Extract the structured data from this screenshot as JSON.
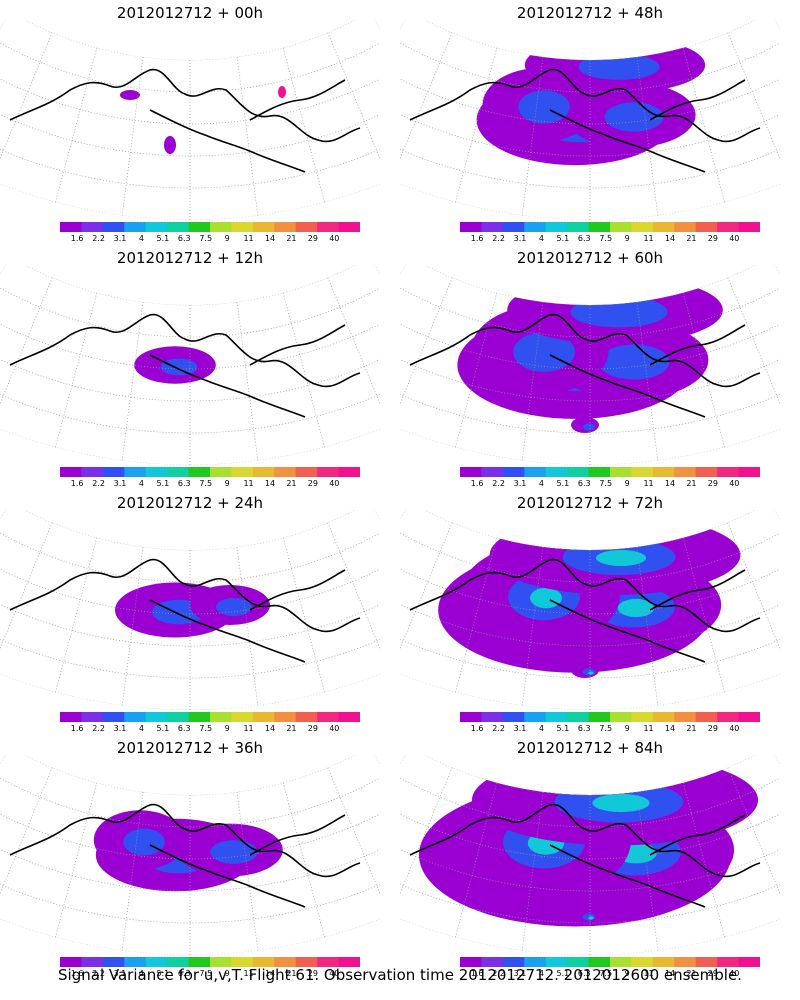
{
  "panels": [
    {
      "title": "2012012712 + 00h",
      "level": 0
    },
    {
      "title": "2012012712 + 48h",
      "level": 4
    },
    {
      "title": "2012012712 + 12h",
      "level": 1
    },
    {
      "title": "2012012712 + 60h",
      "level": 5
    },
    {
      "title": "2012012712 + 24h",
      "level": 2
    },
    {
      "title": "2012012712 + 72h",
      "level": 6
    },
    {
      "title": "2012012712 + 36h",
      "level": 3
    },
    {
      "title": "2012012712 + 84h",
      "level": 7
    }
  ],
  "colorbar": {
    "labels": [
      "1.6",
      "2.2",
      "3.1",
      "4",
      "5.1",
      "6.3",
      "7.5",
      "9",
      "11",
      "14",
      "21",
      "29",
      "40"
    ],
    "colors": [
      "#9a00d2",
      "#7b30e8",
      "#3050f0",
      "#1aa0f0",
      "#10c8d8",
      "#10d0a0",
      "#20c820",
      "#a8e030",
      "#d8d830",
      "#e8b830",
      "#f09040",
      "#f06050",
      "#f02880",
      "#f01090"
    ]
  },
  "caption": "Signal Variance for u,v,T. Flight 61. Observation time 2012012712. 2012012600 ensemble."
}
